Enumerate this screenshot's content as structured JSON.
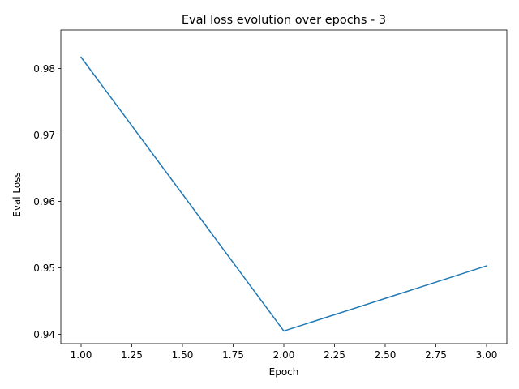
{
  "chart_data": {
    "type": "line",
    "title": "Eval loss evolution over epochs - 3",
    "xlabel": "Epoch",
    "ylabel": "Eval Loss",
    "xlim": [
      0.9,
      3.1
    ],
    "ylim": [
      0.9386,
      0.9858
    ],
    "x_ticks": [
      1.0,
      1.25,
      1.5,
      1.75,
      2.0,
      2.25,
      2.5,
      2.75,
      3.0
    ],
    "x_tick_labels": [
      "1.00",
      "1.25",
      "1.50",
      "1.75",
      "2.00",
      "2.25",
      "2.50",
      "2.75",
      "3.00"
    ],
    "y_ticks": [
      0.94,
      0.95,
      0.96,
      0.97,
      0.98
    ],
    "y_tick_labels": [
      "0.94",
      "0.95",
      "0.96",
      "0.97",
      "0.98"
    ],
    "grid": false,
    "legend": "none",
    "series": [
      {
        "color": "#1f77b4",
        "x": [
          1,
          2,
          3
        ],
        "values": [
          0.9817,
          0.9405,
          0.9503
        ]
      }
    ]
  }
}
